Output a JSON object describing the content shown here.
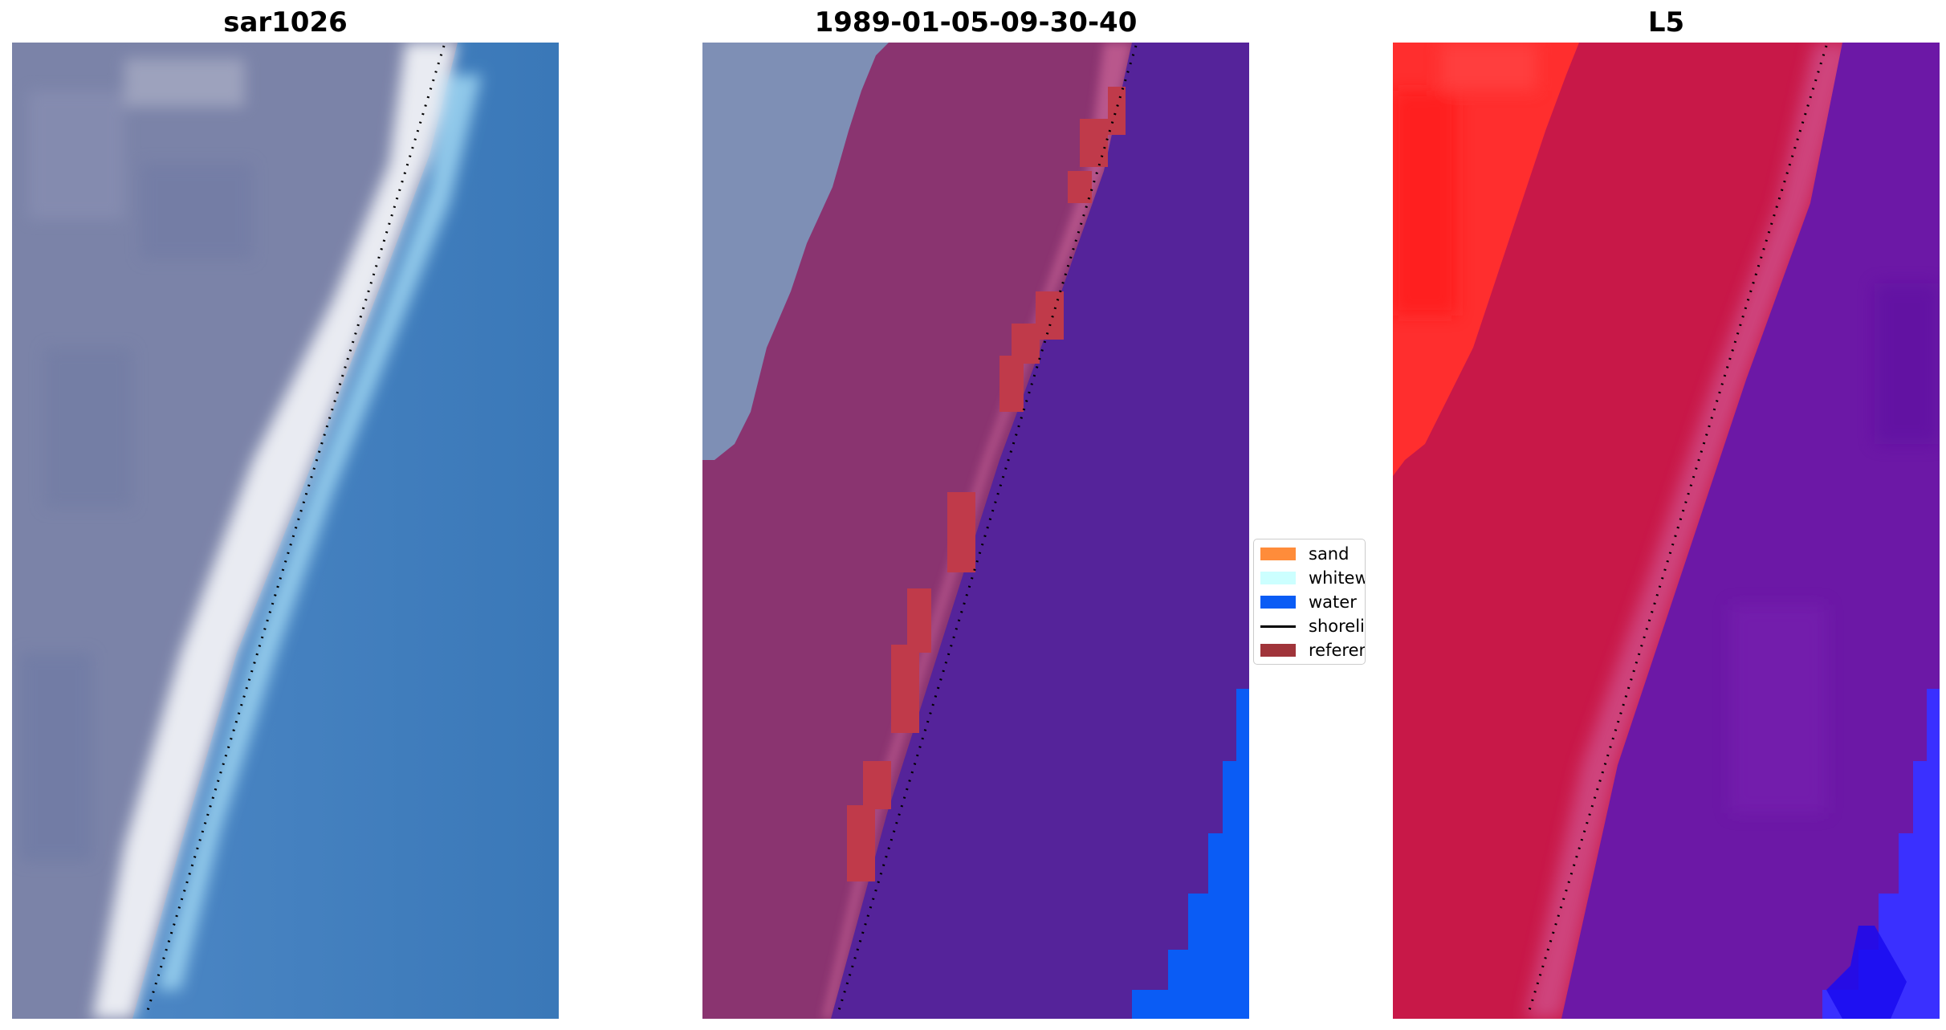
{
  "panels": [
    {
      "title": "sar1026",
      "kind": "rgb-image"
    },
    {
      "title": "1989-01-05-09-30-40",
      "kind": "classified-overlay"
    },
    {
      "title": "L5",
      "kind": "index-map"
    }
  ],
  "legend": {
    "items": [
      {
        "label": "sand",
        "color": "#ff8c3a",
        "type": "patch"
      },
      {
        "label": "whitewater",
        "color": "#ccffff",
        "type": "patch"
      },
      {
        "label": "water",
        "color": "#0a5cf5",
        "type": "patch"
      },
      {
        "label": "shoreline",
        "color": "#000000",
        "type": "line"
      },
      {
        "label": "reference",
        "color": "#a0343a",
        "type": "patch"
      }
    ]
  },
  "colors": {
    "land_gray": "#7f86ab",
    "ocean_blue": "#3f7ebf",
    "beach_white": "#eef0f4",
    "surf_cyan": "#8fd0f0",
    "sand_class": "#8a3470",
    "sand_fringe": "#c76090",
    "water_class": "#55239a",
    "water_bright": "#0a5cf5",
    "reference": "#c03a4a",
    "l5_red": "#ff2a2a",
    "l5_crimson": "#c81848",
    "l5_purple": "#6a18a4",
    "l5_blue": "#3a30ff"
  }
}
